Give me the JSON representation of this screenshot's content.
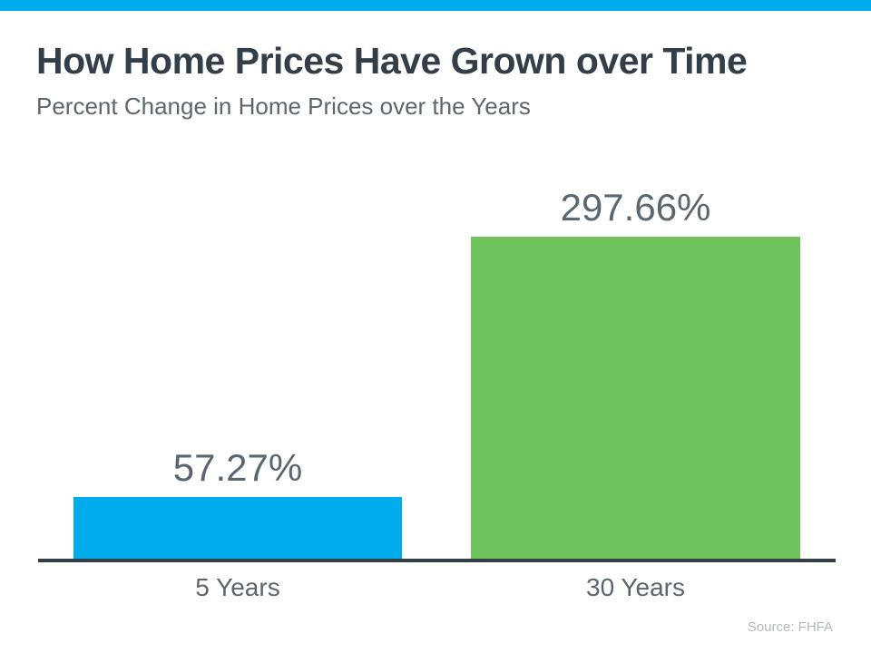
{
  "colors": {
    "accent": "#00ACEC",
    "ink": "#333E48",
    "slate": "#5B6770",
    "source_gray": "#B2B9BF"
  },
  "chart_data": {
    "type": "bar",
    "title": "How Home Prices Have Grown over Time",
    "subtitle": "Percent Change in Home Prices over the Years",
    "categories": [
      "5 Years",
      "30 Years"
    ],
    "values": [
      57.27,
      297.66
    ],
    "value_labels": [
      "57.27%",
      "297.66%"
    ],
    "series_colors": [
      "#00ACEC",
      "#6FC35C"
    ],
    "xlabel": "",
    "ylabel": "",
    "ylim": [
      0,
      320
    ],
    "grid": false,
    "legend": false,
    "value_label_position": "above-bar",
    "source": "Source: FHFA"
  }
}
